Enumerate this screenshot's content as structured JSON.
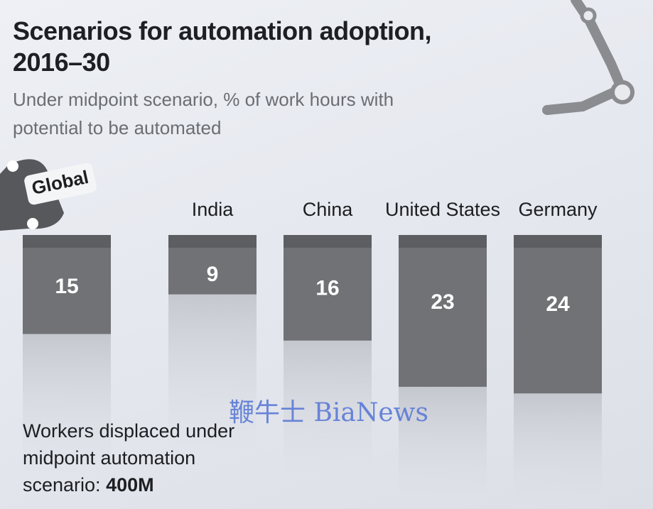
{
  "chart_data": {
    "type": "bar",
    "title": "Scenarios for automation adoption, 2016–30",
    "subtitle": "Under midpoint scenario, % of work hours with potential to be automated",
    "categories": [
      "Global",
      "India",
      "China",
      "United States",
      "Germany"
    ],
    "values": [
      15,
      9,
      16,
      23,
      24
    ],
    "color": "#707276",
    "annotations": [
      "Workers displaced under midpoint automation scenario:",
      "400M"
    ],
    "watermark": "鞭牛士 BiaNews"
  }
}
